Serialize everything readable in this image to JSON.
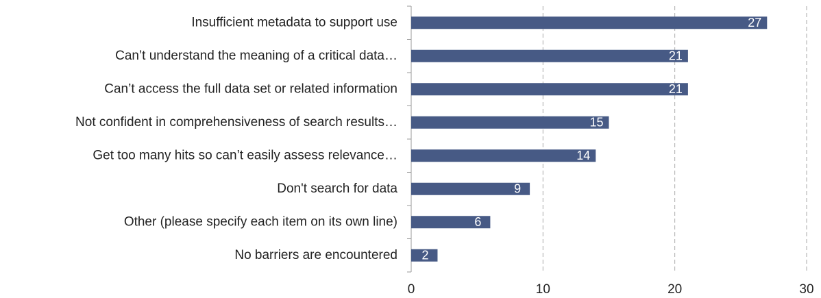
{
  "chart_data": {
    "type": "bar",
    "orientation": "horizontal",
    "categories": [
      "Insufficient metadata to support use",
      "Can’t understand the meaning of a critical data…",
      "Can’t access the full data set or related information",
      "Not confident in comprehensiveness of search results…",
      "Get too many hits so can’t easily assess relevance…",
      "Don't search for data",
      "Other (please specify each item on its own line)",
      "No barriers are encountered"
    ],
    "values": [
      27,
      21,
      21,
      15,
      14,
      9,
      6,
      2
    ],
    "color": "#475a85",
    "xlim": [
      0,
      30
    ],
    "xticks": [
      0,
      10,
      20,
      30
    ],
    "grid": true
  }
}
